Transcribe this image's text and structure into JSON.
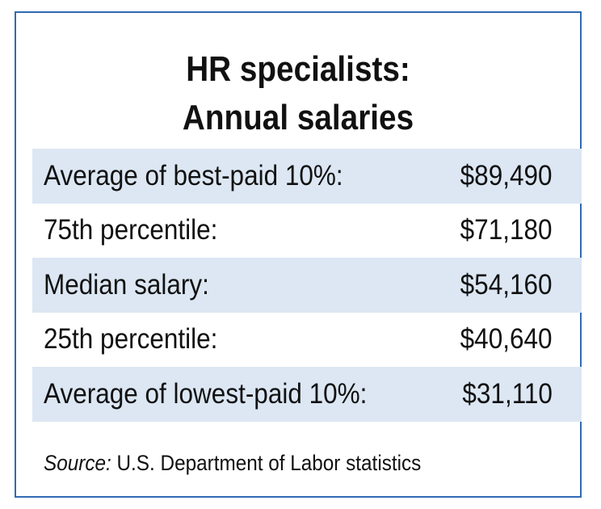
{
  "title_lines": [
    "HR specialists:",
    "Annual salaries"
  ],
  "colors": {
    "border": "#2f6bb3",
    "row_shade": "#dce7f3",
    "text": "#111111"
  },
  "chart_data": {
    "type": "table",
    "title": "HR specialists: Annual salaries",
    "rows": [
      {
        "label": "Average of best-paid 10%:",
        "value": "$89,490"
      },
      {
        "label": "75th percentile:",
        "value": "$71,180"
      },
      {
        "label": "Median salary:",
        "value": "$54,160"
      },
      {
        "label": "25th percentile:",
        "value": "$40,640"
      },
      {
        "label": "Average of lowest-paid 10%:",
        "value": "$31,110"
      }
    ],
    "values": [
      89490,
      71180,
      54160,
      40640,
      31110
    ]
  },
  "source": {
    "prefix": "Source:",
    "text": " U.S. Department of Labor statistics"
  }
}
